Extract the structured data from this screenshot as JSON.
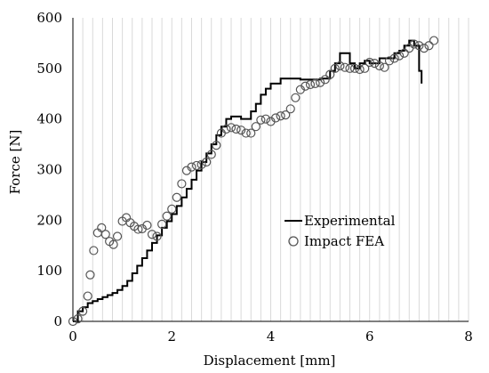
{
  "chart_data": {
    "type": "line",
    "title": "",
    "xlabel": "Displacement [mm]",
    "ylabel": "Force [N]",
    "xlim": [
      0,
      8
    ],
    "ylim": [
      0,
      600
    ],
    "xticks": [
      0,
      2,
      4,
      6,
      8
    ],
    "yticks": [
      0,
      100,
      200,
      300,
      400,
      500,
      600
    ],
    "grid": "vertical minor gridlines",
    "legend_position": "center-right",
    "colors": {
      "experimental": "#000000",
      "fea_marker": "#555555",
      "grid": "#d9d9d9"
    },
    "series": [
      {
        "name": "Experimental",
        "style": "line",
        "x": [
          0,
          0.1,
          0.2,
          0.3,
          0.4,
          0.5,
          0.6,
          0.7,
          0.8,
          0.9,
          1.0,
          1.1,
          1.2,
          1.3,
          1.4,
          1.5,
          1.6,
          1.7,
          1.8,
          1.9,
          2.0,
          2.1,
          2.2,
          2.3,
          2.4,
          2.5,
          2.6,
          2.7,
          2.8,
          2.9,
          3.0,
          3.1,
          3.2,
          3.3,
          3.4,
          3.5,
          3.6,
          3.7,
          3.8,
          3.9,
          4.0,
          4.2,
          4.4,
          4.6,
          4.8,
          5.0,
          5.2,
          5.3,
          5.4,
          5.5,
          5.6,
          5.7,
          5.8,
          5.9,
          6.0,
          6.2,
          6.4,
          6.5,
          6.6,
          6.7,
          6.8,
          6.9,
          7.0,
          7.05
        ],
        "y": [
          0,
          20,
          28,
          36,
          40,
          44,
          48,
          52,
          56,
          62,
          70,
          80,
          95,
          110,
          125,
          140,
          155,
          170,
          185,
          198,
          212,
          228,
          245,
          262,
          280,
          298,
          315,
          332,
          350,
          368,
          385,
          400,
          405,
          405,
          400,
          400,
          415,
          430,
          448,
          460,
          470,
          480,
          480,
          478,
          478,
          480,
          495,
          510,
          530,
          530,
          510,
          500,
          510,
          515,
          510,
          520,
          520,
          530,
          535,
          545,
          555,
          545,
          495,
          470
        ]
      },
      {
        "name": "Impact FEA",
        "style": "markers",
        "x": [
          0,
          0.1,
          0.2,
          0.3,
          0.35,
          0.42,
          0.5,
          0.58,
          0.66,
          0.74,
          0.82,
          0.9,
          1.0,
          1.08,
          1.16,
          1.24,
          1.32,
          1.4,
          1.5,
          1.6,
          1.7,
          1.8,
          1.9,
          2.0,
          2.1,
          2.2,
          2.3,
          2.4,
          2.5,
          2.6,
          2.7,
          2.8,
          2.9,
          3.0,
          3.1,
          3.2,
          3.3,
          3.4,
          3.5,
          3.6,
          3.7,
          3.8,
          3.9,
          4.0,
          4.1,
          4.2,
          4.3,
          4.4,
          4.5,
          4.6,
          4.7,
          4.8,
          4.9,
          5.0,
          5.1,
          5.2,
          5.3,
          5.4,
          5.5,
          5.6,
          5.7,
          5.8,
          5.9,
          6.0,
          6.1,
          6.2,
          6.3,
          6.4,
          6.5,
          6.6,
          6.7,
          6.8,
          6.9,
          7.0,
          7.1,
          7.2,
          7.3
        ],
        "y": [
          0,
          5,
          20,
          50,
          92,
          140,
          175,
          185,
          172,
          158,
          152,
          168,
          198,
          205,
          195,
          188,
          182,
          183,
          190,
          172,
          168,
          192,
          208,
          222,
          245,
          272,
          298,
          305,
          308,
          310,
          315,
          330,
          348,
          372,
          380,
          383,
          380,
          378,
          372,
          372,
          385,
          398,
          400,
          395,
          402,
          406,
          408,
          420,
          442,
          458,
          465,
          468,
          470,
          472,
          478,
          488,
          500,
          505,
          502,
          500,
          500,
          498,
          500,
          512,
          510,
          505,
          502,
          515,
          520,
          525,
          530,
          540,
          548,
          545,
          540,
          545,
          555
        ]
      }
    ]
  }
}
